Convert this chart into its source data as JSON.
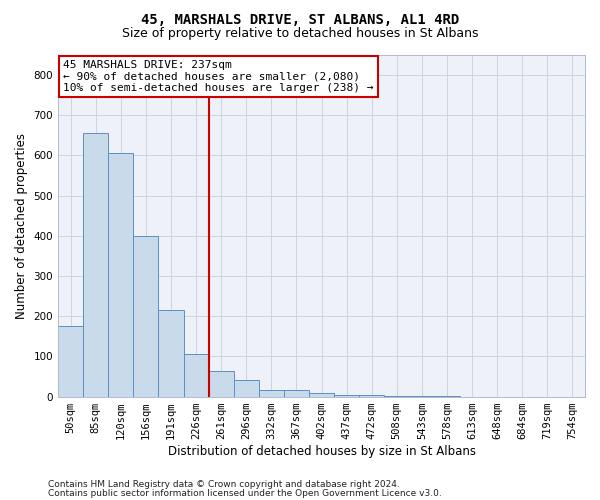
{
  "title": "45, MARSHALS DRIVE, ST ALBANS, AL1 4RD",
  "subtitle": "Size of property relative to detached houses in St Albans",
  "xlabel": "Distribution of detached houses by size in St Albans",
  "ylabel": "Number of detached properties",
  "bar_labels": [
    "50sqm",
    "85sqm",
    "120sqm",
    "156sqm",
    "191sqm",
    "226sqm",
    "261sqm",
    "296sqm",
    "332sqm",
    "367sqm",
    "402sqm",
    "437sqm",
    "472sqm",
    "508sqm",
    "543sqm",
    "578sqm",
    "613sqm",
    "648sqm",
    "684sqm",
    "719sqm",
    "754sqm"
  ],
  "bar_heights": [
    175,
    655,
    607,
    400,
    215,
    107,
    63,
    42,
    17,
    17,
    8,
    5,
    3,
    2,
    1,
    1,
    0,
    0,
    0,
    0,
    0
  ],
  "bar_color": "#c9daea",
  "bar_edge_color": "#5b8fc9",
  "vline_x_idx": 5.5,
  "vline_color": "#cc0000",
  "annotation_text": "45 MARSHALS DRIVE: 237sqm\n← 90% of detached houses are smaller (2,080)\n10% of semi-detached houses are larger (238) →",
  "annotation_box_color": "#ffffff",
  "annotation_box_edge": "#cc0000",
  "ylim": [
    0,
    850
  ],
  "yticks": [
    0,
    100,
    200,
    300,
    400,
    500,
    600,
    700,
    800
  ],
  "footer_line1": "Contains HM Land Registry data © Crown copyright and database right 2024.",
  "footer_line2": "Contains public sector information licensed under the Open Government Licence v3.0.",
  "bg_color": "#eef2f8",
  "grid_color": "#c8d0dc",
  "title_fontsize": 10,
  "subtitle_fontsize": 9,
  "axis_label_fontsize": 8.5,
  "tick_fontsize": 7.5,
  "annotation_fontsize": 8,
  "footer_fontsize": 6.5,
  "figsize": [
    6.0,
    5.0
  ],
  "dpi": 100
}
